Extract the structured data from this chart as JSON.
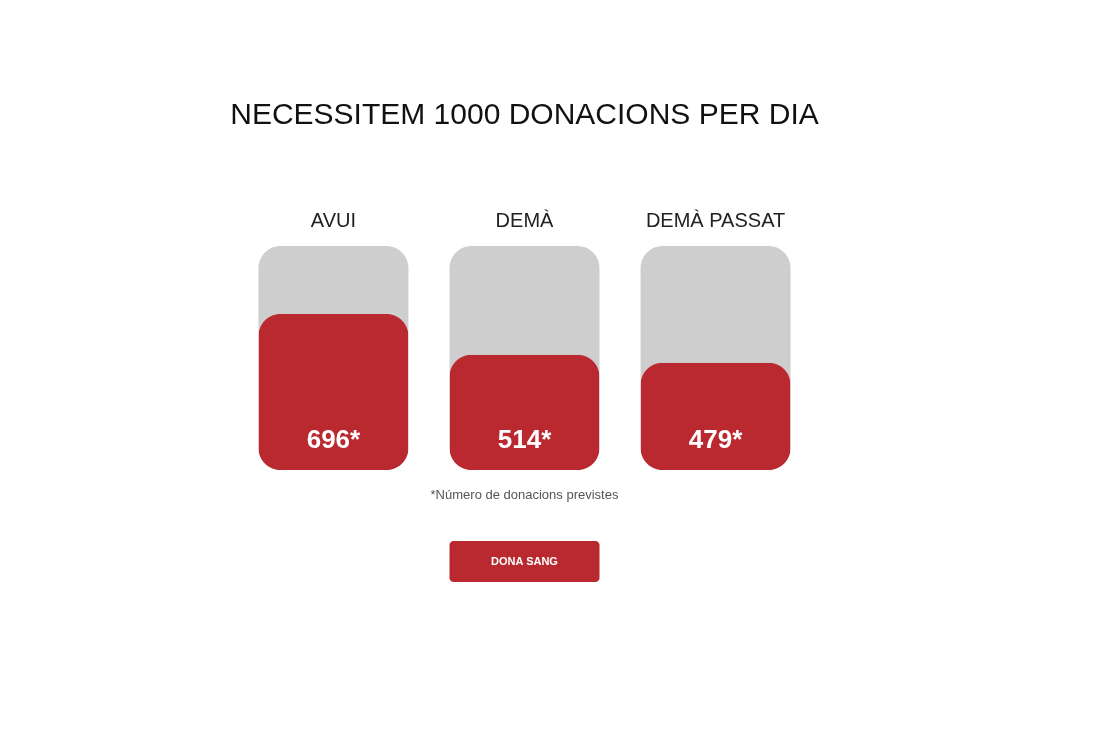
{
  "chart_data": {
    "type": "bar",
    "title": "NECESSITEM 1000 DONACIONS PER DIA",
    "categories": [
      "AVUI",
      "DEMÀ",
      "DEMÀ PASSAT"
    ],
    "values": [
      696,
      514,
      479
    ],
    "value_labels": [
      "696*",
      "514*",
      "479*"
    ],
    "color": "#bb2930",
    "ylim": [
      0,
      1000
    ],
    "tick_labels": "x",
    "annotations": [
      "*Número de donacions previstes",
      "DONA SANG"
    ]
  }
}
